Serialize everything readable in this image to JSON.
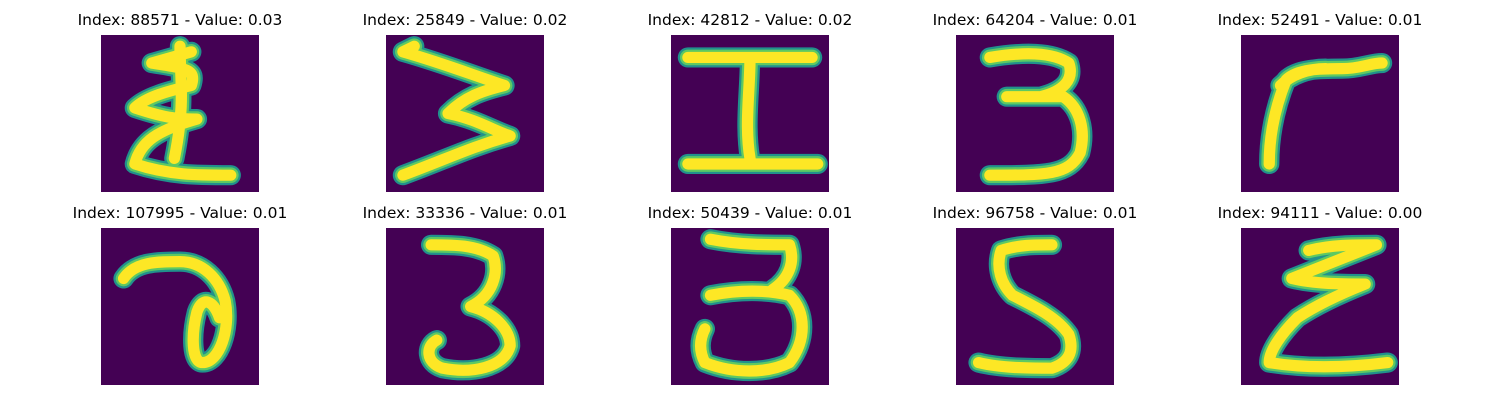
{
  "colors": {
    "background": "#440154",
    "mid": "#21918c",
    "light": "#5ec962",
    "stroke": "#fde725"
  },
  "panels": [
    {
      "title": "Index: 88571 - Value: 0.03",
      "glyph": "epsilon-digit"
    },
    {
      "title": "Index: 25849 - Value: 0.02",
      "glyph": "w-shape-digit"
    },
    {
      "title": "Index: 42812 - Value: 0.02",
      "glyph": "i-beam-digit"
    },
    {
      "title": "Index: 64204 - Value: 0.01",
      "glyph": "three-digit"
    },
    {
      "title": "Index: 52491 - Value: 0.01",
      "glyph": "r-shape-digit"
    },
    {
      "title": "Index: 107995 - Value: 0.01",
      "glyph": "loop-digit"
    },
    {
      "title": "Index: 33336 - Value: 0.01",
      "glyph": "three-digit"
    },
    {
      "title": "Index: 50439 - Value: 0.01",
      "glyph": "three-digit"
    },
    {
      "title": "Index: 96758 - Value: 0.01",
      "glyph": "five-digit"
    },
    {
      "title": "Index: 94111 - Value: 0.00",
      "glyph": "epsilon-digit"
    }
  ]
}
